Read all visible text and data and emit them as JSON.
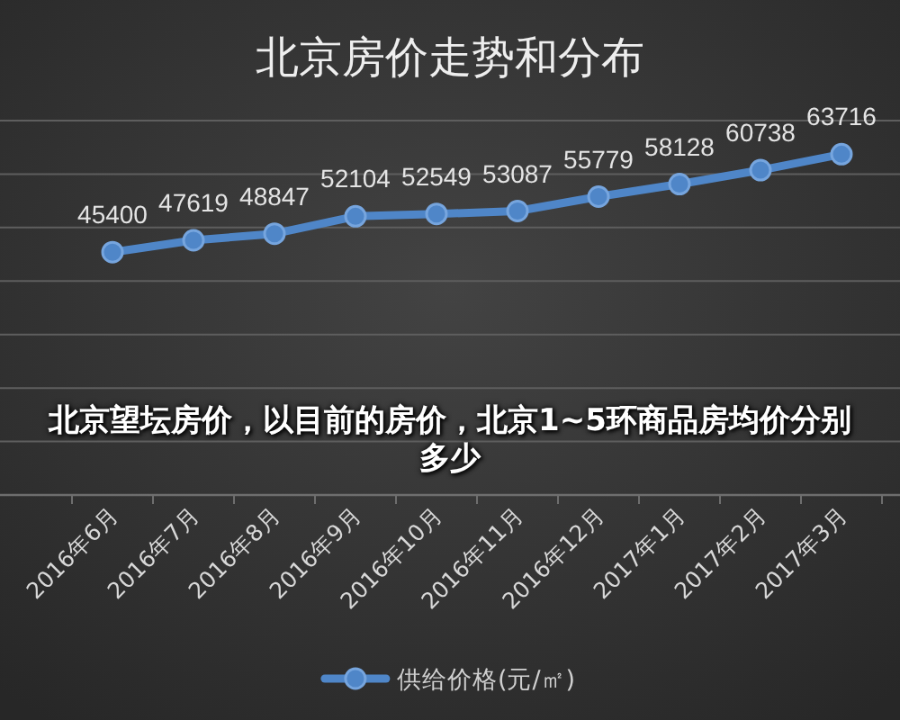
{
  "chart_data": {
    "type": "line",
    "title": "北京房价走势和分布",
    "categories": [
      "2016年6月",
      "2016年7月",
      "2016年8月",
      "2016年9月",
      "2016年10月",
      "2016年11月",
      "2016年12月",
      "2017年1月",
      "2017年2月",
      "2017年3月"
    ],
    "series": [
      {
        "name": "供给价格(元/㎡)",
        "color": "#4f86c8",
        "values": [
          45400,
          47619,
          48847,
          52104,
          52549,
          53087,
          55779,
          58128,
          60738,
          63716
        ]
      }
    ],
    "ylim": [
      0,
      70000
    ],
    "yticks": [
      {
        "value": 0,
        "label": null
      },
      {
        "value": 10000,
        "label": null
      },
      {
        "value": 20000,
        "label": null
      },
      {
        "value": 30000,
        "label": null
      },
      {
        "value": 40000,
        "label": null
      },
      {
        "value": 50000,
        "label": null
      },
      {
        "value": 60000,
        "label": null
      },
      {
        "value": 70000,
        "label": null
      }
    ],
    "grid": "y",
    "tick_labels": "x",
    "legend": "bottom",
    "marker": "circle",
    "line_style": "solid",
    "data_labels": true,
    "annotations": [
      "北京望坛房价，以目前的房价，北京1~5环商品房均价分别多少"
    ]
  }
}
